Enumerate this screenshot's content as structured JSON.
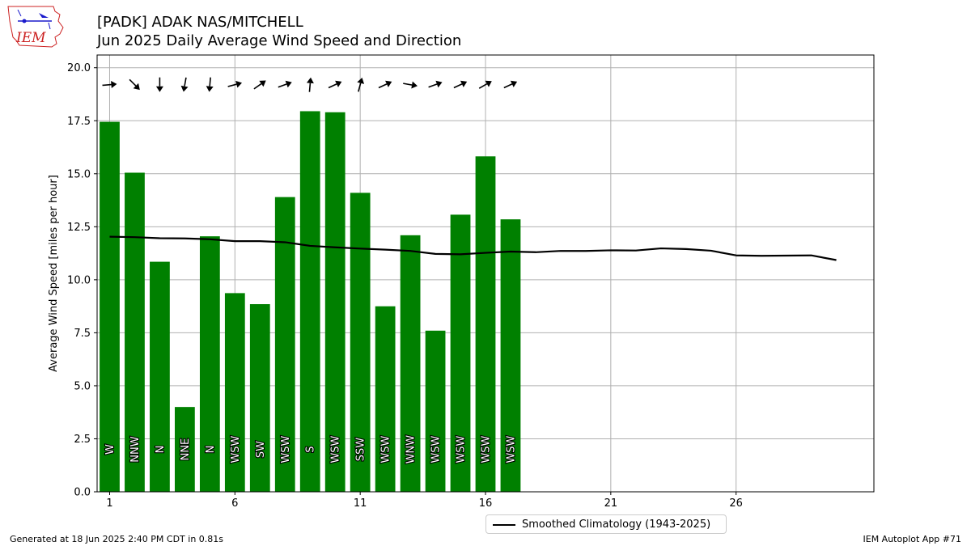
{
  "header": {
    "title_line1": "[PADK] ADAK NAS/MITCHELL",
    "title_line2": "Jun 2025 Daily Average Wind Speed and Direction",
    "logo_text": "IEM"
  },
  "footer": {
    "generated": "Generated at 18 Jun 2025 2:40 PM CDT in 0.81s",
    "app": "IEM Autoplot App #71"
  },
  "colors": {
    "bar": "#008000",
    "line": "#000000",
    "grid": "#b0b0b0",
    "logo_red": "#cc2222",
    "logo_blue": "#1a1acc"
  },
  "chart_data": {
    "type": "bar",
    "title": "[PADK] ADAK NAS/MITCHELL",
    "subtitle": "Jun 2025 Daily Average Wind Speed and Direction",
    "ylabel": "Average Wind Speed [miles per hour]",
    "xlabel": "",
    "xlim": [
      0.5,
      31.5
    ],
    "ylim": [
      0,
      20.6
    ],
    "xticks": [
      1,
      6,
      11,
      16,
      21,
      26
    ],
    "yticks": [
      0.0,
      2.5,
      5.0,
      7.5,
      10.0,
      12.5,
      15.0,
      17.5,
      20.0
    ],
    "grid": true,
    "legend_position": "bottom-center",
    "series": [
      {
        "type": "bar",
        "days": [
          1,
          2,
          3,
          4,
          5,
          6,
          7,
          8,
          9,
          10,
          11,
          12,
          13,
          14,
          15,
          16,
          17
        ],
        "values": [
          17.45,
          15.05,
          10.85,
          4.0,
          12.05,
          9.37,
          8.85,
          13.9,
          17.95,
          17.9,
          14.1,
          8.75,
          12.1,
          7.6,
          13.07,
          15.82,
          12.85
        ],
        "directions": [
          "W",
          "NNW",
          "N",
          "NNE",
          "N",
          "WSW",
          "SW",
          "WSW",
          "S",
          "WSW",
          "SSW",
          "WSW",
          "WNW",
          "WSW",
          "WSW",
          "WSW",
          "WSW"
        ],
        "arrow_degrees_ccw_from_east": [
          5,
          -45,
          -90,
          -100,
          -95,
          15,
          35,
          20,
          85,
          25,
          75,
          25,
          -10,
          20,
          25,
          30,
          25
        ]
      },
      {
        "type": "line",
        "name": "Smoothed Climatology (1943-2025)",
        "days": [
          1,
          2,
          3,
          4,
          5,
          6,
          7,
          8,
          9,
          10,
          11,
          12,
          13,
          14,
          15,
          16,
          17,
          18,
          19,
          20,
          21,
          22,
          23,
          24,
          25,
          26,
          27,
          28,
          29,
          30
        ],
        "values": [
          12.03,
          12.01,
          11.96,
          11.95,
          11.91,
          11.82,
          11.82,
          11.77,
          11.6,
          11.53,
          11.47,
          11.42,
          11.36,
          11.22,
          11.2,
          11.27,
          11.33,
          11.3,
          11.36,
          11.36,
          11.39,
          11.38,
          11.48,
          11.45,
          11.37,
          11.15,
          11.13,
          11.14,
          11.15,
          10.93
        ]
      }
    ]
  }
}
